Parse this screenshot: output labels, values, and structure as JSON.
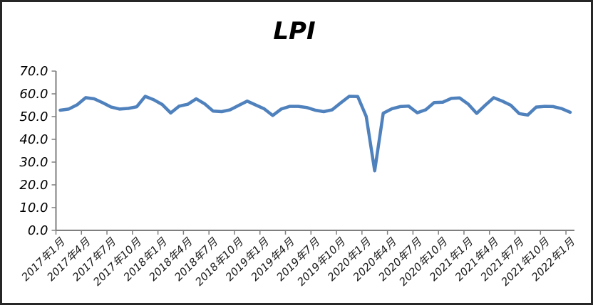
{
  "chart": {
    "title": "LPI"
  },
  "style": {
    "line_color": "#4f81bd",
    "axis_color": "#7f7f7f",
    "label_color": "#000000",
    "border_color": "#262626",
    "background": "#ffffff"
  },
  "chart_data": {
    "type": "line",
    "title": "LPI",
    "categories": [
      "2017年1月",
      "2017年2月",
      "2017年3月",
      "2017年4月",
      "2017年5月",
      "2017年6月",
      "2017年7月",
      "2017年8月",
      "2017年9月",
      "2017年10月",
      "2017年11月",
      "2017年12月",
      "2018年1月",
      "2018年2月",
      "2018年3月",
      "2018年4月",
      "2018年5月",
      "2018年6月",
      "2018年7月",
      "2018年8月",
      "2018年9月",
      "2018年10月",
      "2018年11月",
      "2018年12月",
      "2019年1月",
      "2019年2月",
      "2019年3月",
      "2019年4月",
      "2019年5月",
      "2019年6月",
      "2019年7月",
      "2019年8月",
      "2019年9月",
      "2019年10月",
      "2019年11月",
      "2019年12月",
      "2020年1月",
      "2020年2月",
      "2020年3月",
      "2020年4月",
      "2020年5月",
      "2020年6月",
      "2020年7月",
      "2020年8月",
      "2020年9月",
      "2020年10月",
      "2020年11月",
      "2020年12月",
      "2021年1月",
      "2021年2月",
      "2021年3月",
      "2021年4月",
      "2021年5月",
      "2021年6月",
      "2021年7月",
      "2021年8月",
      "2021年9月",
      "2021年10月",
      "2021年11月",
      "2021年12月",
      "2022年1月"
    ],
    "values": [
      52.8,
      53.3,
      55.2,
      58.3,
      57.8,
      56.1,
      54.2,
      53.3,
      53.6,
      54.3,
      58.9,
      57.4,
      55.3,
      51.6,
      54.6,
      55.4,
      57.8,
      55.6,
      52.4,
      52.2,
      53.0,
      54.9,
      56.8,
      55.1,
      53.4,
      50.5,
      53.3,
      54.5,
      54.5,
      54.0,
      52.8,
      52.2,
      53.0,
      56.0,
      58.9,
      58.8,
      50.1,
      26.2,
      51.5,
      53.4,
      54.4,
      54.6,
      51.7,
      53.0,
      56.2,
      56.3,
      58.0,
      58.2,
      55.5,
      51.4,
      55.0,
      58.3,
      56.8,
      55.0,
      51.3,
      50.7,
      54.2,
      54.5,
      54.4,
      53.5,
      51.9
    ],
    "x_tick_labels": [
      "2017年1月",
      "2017年4月",
      "2017年7月",
      "2017年10月",
      "2018年1月",
      "2018年4月",
      "2018年7月",
      "2018年10月",
      "2019年1月",
      "2019年4月",
      "2019年7月",
      "2019年10月",
      "2020年1月",
      "2020年4月",
      "2020年7月",
      "2020年10月",
      "2021年1月",
      "2021年4月",
      "2021年7月",
      "2021年10月",
      "2022年1月"
    ],
    "x_tick_interval": 3,
    "y_ticks": [
      0,
      10,
      20,
      30,
      40,
      50,
      60,
      70
    ],
    "y_tick_labels": [
      "0.0",
      "10.0",
      "20.0",
      "30.0",
      "40.0",
      "50.0",
      "60.0",
      "70.0"
    ],
    "ylim": [
      0,
      70
    ],
    "xlabel": "",
    "ylabel": "",
    "grid": false,
    "legend": false
  }
}
